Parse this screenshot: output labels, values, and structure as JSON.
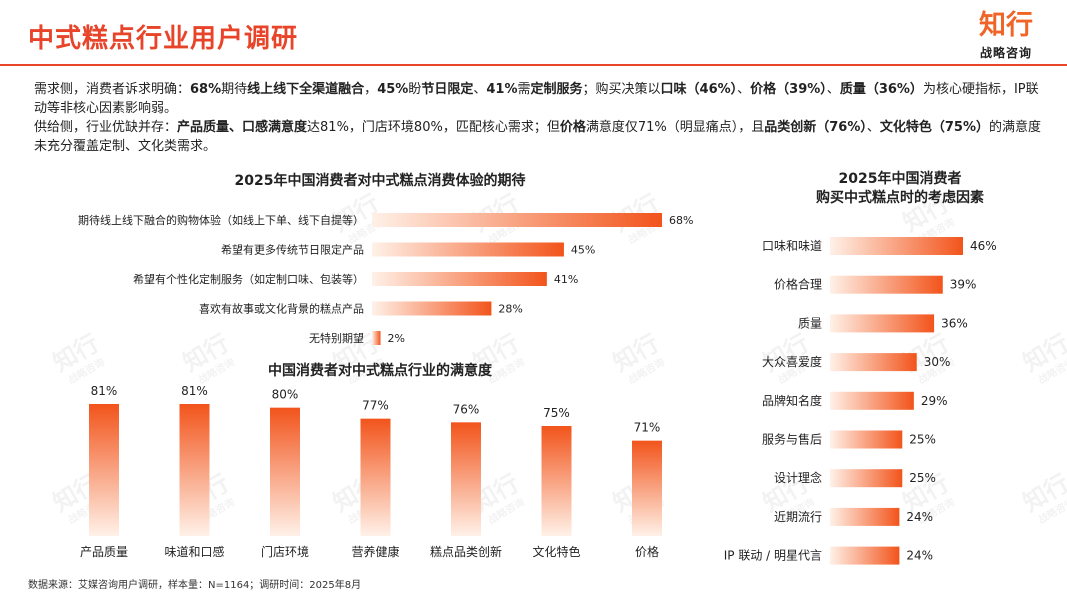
{
  "header": {
    "title": "中式糕点行业用户调研",
    "logo_main": "知行",
    "logo_sub": "战略咨询"
  },
  "summary": {
    "demand": [
      {
        "t": "需求侧，消费者诉求明确：",
        "b": false
      },
      {
        "t": "68%",
        "b": true
      },
      {
        "t": "期待",
        "b": false
      },
      {
        "t": "线上线下全渠道融合",
        "b": true
      },
      {
        "t": "，",
        "b": false
      },
      {
        "t": "45%",
        "b": true
      },
      {
        "t": "盼",
        "b": false
      },
      {
        "t": "节日限定",
        "b": true
      },
      {
        "t": "、",
        "b": false
      },
      {
        "t": "41%",
        "b": true
      },
      {
        "t": "需",
        "b": false
      },
      {
        "t": "定制服务",
        "b": true
      },
      {
        "t": "；购买决策以",
        "b": false
      },
      {
        "t": "口味（46%）",
        "b": true
      },
      {
        "t": "、",
        "b": false
      },
      {
        "t": "价格（39%）",
        "b": true
      },
      {
        "t": "、",
        "b": false
      },
      {
        "t": "质量（36%）",
        "b": true
      },
      {
        "t": "为核心硬指标，IP联动等非核心因素影响弱。",
        "b": false
      }
    ],
    "supply": [
      {
        "t": "供给侧，行业优缺并存：",
        "b": false
      },
      {
        "t": "产品质量、口感满意度",
        "b": true
      },
      {
        "t": "达81%，门店环境80%，匹配核心需求；但",
        "b": false
      },
      {
        "t": "价格",
        "b": true
      },
      {
        "t": "满意度仅71%（明显痛点），且",
        "b": false
      },
      {
        "t": "品类创新（76%）",
        "b": true
      },
      {
        "t": "、",
        "b": false
      },
      {
        "t": "文化特色（75%）",
        "b": true
      },
      {
        "t": "的满意度未充分覆盖定制、文化类需求。",
        "b": false
      }
    ]
  },
  "chart_data": [
    {
      "id": "expectations",
      "type": "bar",
      "orientation": "horizontal",
      "title": "2025年中国消费者对中式糕点消费体验的期待",
      "categories": [
        "期待线上线下融合的购物体验（如线上下单、线下自提等）",
        "希望有更多传统节日限定产品",
        "希望有个性化定制服务（如定制口味、包装等）",
        "喜欢有故事或文化背景的糕点产品",
        "无特别期望"
      ],
      "values": [
        68,
        45,
        41,
        28,
        2
      ],
      "value_labels": [
        "68%",
        "45%",
        "41%",
        "28%",
        "2%"
      ],
      "unit": "%"
    },
    {
      "id": "satisfaction",
      "type": "bar",
      "orientation": "vertical",
      "title": "中国消费者对中式糕点行业的满意度",
      "categories": [
        "产品质量",
        "味道和口感",
        "门店环境",
        "营养健康",
        "糕点品类创新",
        "文化特色",
        "价格"
      ],
      "values": [
        81,
        81,
        80,
        77,
        76,
        75,
        71
      ],
      "value_labels": [
        "81%",
        "81%",
        "80%",
        "77%",
        "76%",
        "75%",
        "71%"
      ],
      "unit": "%"
    },
    {
      "id": "factors",
      "type": "bar",
      "orientation": "horizontal",
      "title": "2025年中国消费者",
      "title_line2": "购买中式糕点时的考虑因素",
      "categories": [
        "口味和味道",
        "价格合理",
        "质量",
        "大众喜爱度",
        "品牌知名度",
        "服务与售后",
        "设计理念",
        "近期流行",
        "IP 联动 / 明星代言"
      ],
      "values": [
        46,
        39,
        36,
        30,
        29,
        25,
        25,
        24,
        24
      ],
      "value_labels": [
        "46%",
        "39%",
        "36%",
        "30%",
        "29%",
        "25%",
        "25%",
        "24%",
        "24%"
      ],
      "unit": "%"
    }
  ],
  "watermark": "知行",
  "watermark_sub": "战略咨询",
  "footer": {
    "source": "数据来源：艾媒咨询用户调研，样本量：N=1164；调研时间：2025年8月"
  },
  "colors": {
    "accent": "#e8442a",
    "bar_start": "#fff1e8",
    "bar_end": "#f2541b"
  }
}
